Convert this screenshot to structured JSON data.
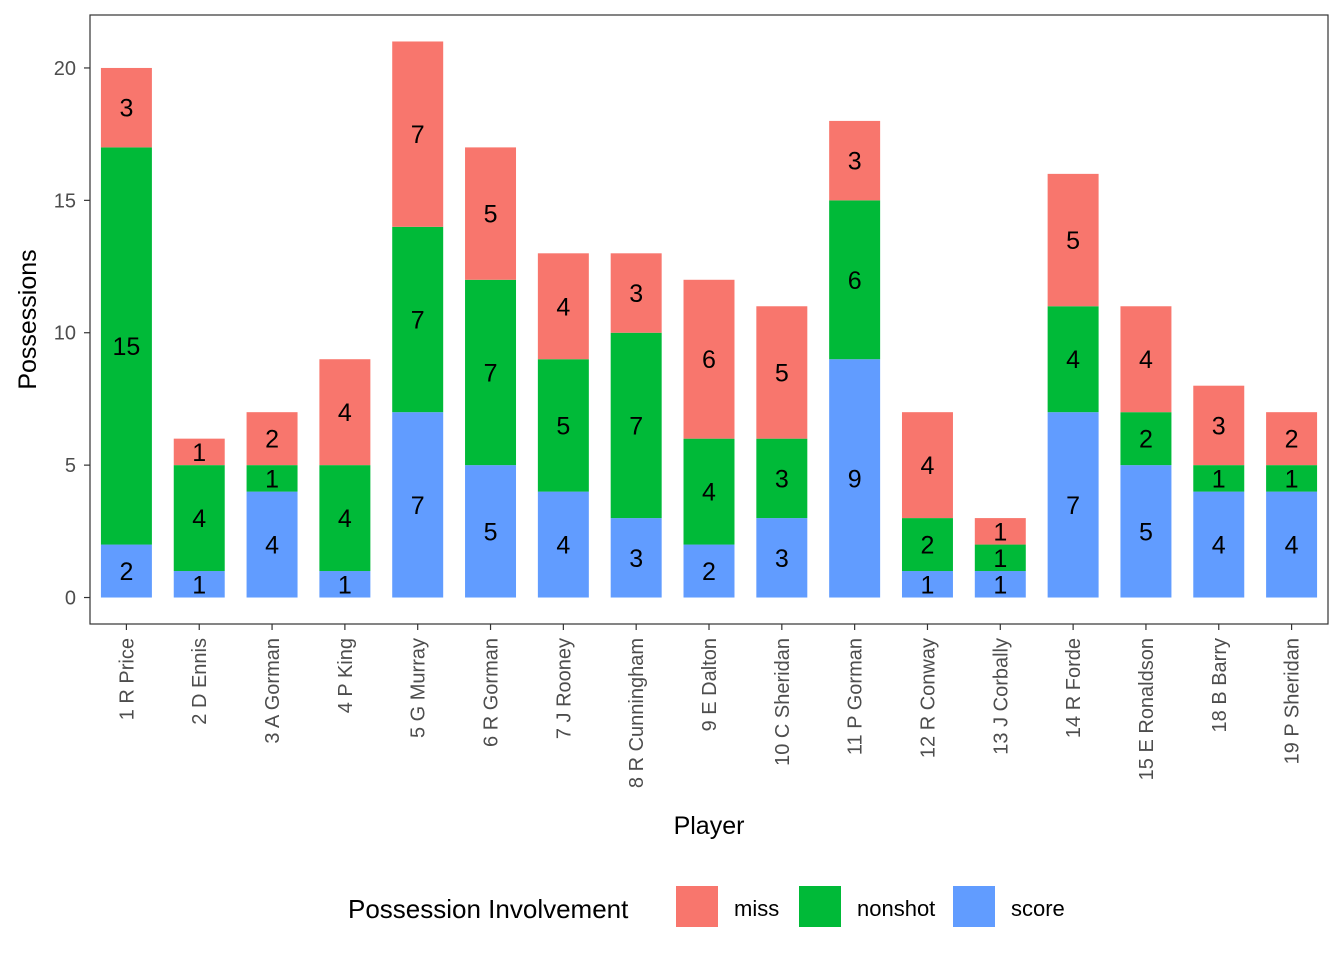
{
  "chart_data": {
    "type": "bar",
    "stacked": true,
    "title": "",
    "xlabel": "Player",
    "ylabel": "Possessions",
    "ylim": [
      -1,
      22
    ],
    "yticks": [
      0,
      5,
      10,
      15,
      20
    ],
    "grid": false,
    "legend_position": "bottom",
    "legend_title": "Possession Involvement",
    "categories": [
      "1 R Price",
      "2 D Ennis",
      "3 A Gorman",
      "4 P King",
      "5 G Murray",
      "6 R Gorman",
      "7 J Rooney",
      "8 R Cunningham",
      "9 E Dalton",
      "10 C Sheridan",
      "11 P Gorman",
      "12 R Conway",
      "13 J Corbally",
      "14 R Forde",
      "15 E Ronaldson",
      "18 B Barry",
      "19 P Sheridan"
    ],
    "series": [
      {
        "name": "score",
        "color": "#619CFF",
        "values": [
          2,
          1,
          4,
          1,
          7,
          5,
          4,
          3,
          2,
          3,
          9,
          1,
          1,
          7,
          5,
          4,
          4
        ]
      },
      {
        "name": "nonshot",
        "color": "#00BA38",
        "values": [
          15,
          4,
          1,
          4,
          7,
          7,
          5,
          7,
          4,
          3,
          6,
          2,
          1,
          4,
          2,
          1,
          1
        ]
      },
      {
        "name": "miss",
        "color": "#F8766D",
        "values": [
          3,
          1,
          2,
          4,
          7,
          5,
          4,
          3,
          6,
          5,
          3,
          4,
          1,
          5,
          4,
          3,
          2
        ]
      }
    ],
    "legend_order": [
      "miss",
      "nonshot",
      "score"
    ]
  }
}
